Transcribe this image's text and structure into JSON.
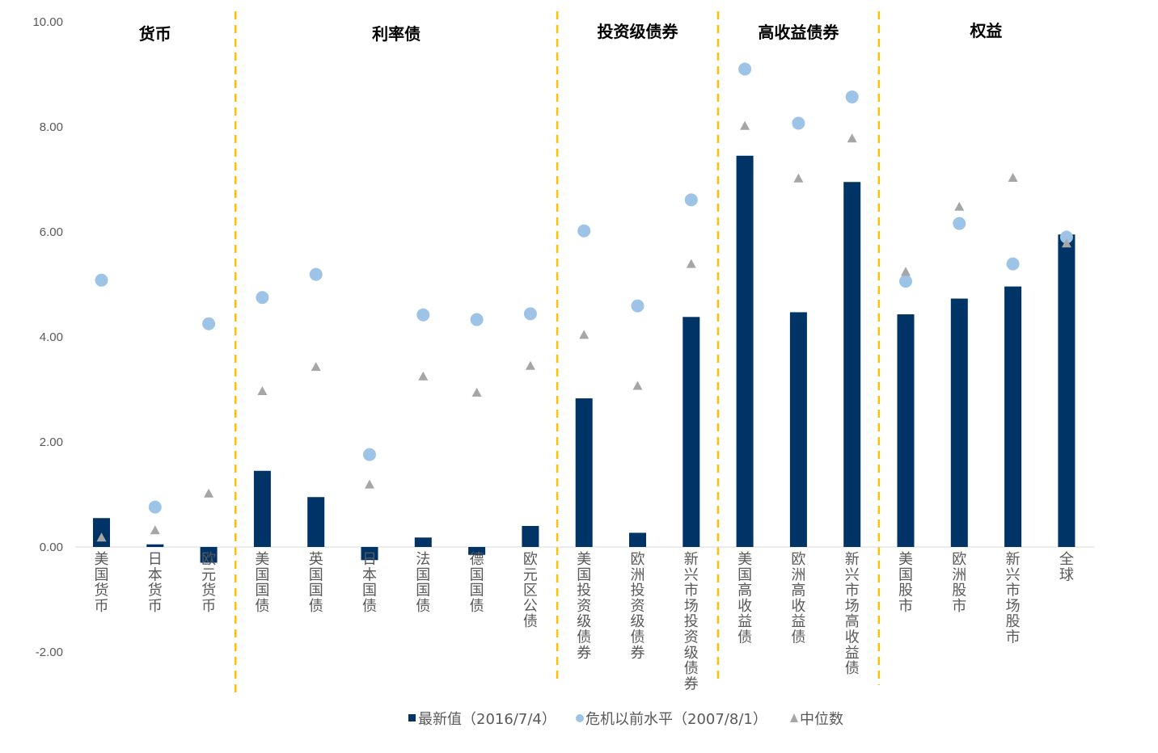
{
  "chart_data": {
    "type": "bar",
    "title": "",
    "xlabel": "",
    "ylabel": "",
    "ylim": [
      -2,
      10
    ],
    "yticks": [
      "-2.00",
      "0.00",
      "2.00",
      "4.00",
      "6.00",
      "8.00",
      "10.00"
    ],
    "grid": false,
    "legend_position": "bottom",
    "categories": [
      "美国货币",
      "日本货币",
      "欧元货币",
      "美国国债",
      "英国国债",
      "日本国债",
      "法国国债",
      "德国国债",
      "欧元区公债",
      "美国投资级债券",
      "欧洲投资级债券",
      "新兴市场投资级债券",
      "美国高收益债",
      "欧洲高收益债",
      "新兴市场高收益债",
      "美国股市",
      "欧洲股市",
      "新兴市场股市",
      "全球"
    ],
    "groups": [
      {
        "label": "货币",
        "start": 0,
        "end": 2
      },
      {
        "label": "利率债",
        "start": 3,
        "end": 8
      },
      {
        "label": "投资级债券",
        "start": 9,
        "end": 11
      },
      {
        "label": "高收益债券",
        "start": 12,
        "end": 14
      },
      {
        "label": "权益",
        "start": 15,
        "end": 18
      }
    ],
    "series": [
      {
        "name": "最新值（2016/7/4）",
        "kind": "bar",
        "color": "#003366",
        "values": [
          0.55,
          0.05,
          -0.3,
          1.45,
          0.95,
          -0.25,
          0.18,
          -0.15,
          0.4,
          2.83,
          0.27,
          4.38,
          7.45,
          4.47,
          6.95,
          4.43,
          4.73,
          4.96,
          5.95
        ]
      },
      {
        "name": "危机以前水平（2007/8/1）",
        "kind": "circle",
        "color": "#9DC3E6",
        "values": [
          5.08,
          0.76,
          4.25,
          4.75,
          5.19,
          1.76,
          4.42,
          4.33,
          4.44,
          6.02,
          4.59,
          6.61,
          9.1,
          8.07,
          8.57,
          5.06,
          6.16,
          5.39,
          5.9
        ]
      },
      {
        "name": "中位数",
        "kind": "triangle",
        "color": "#A6A6A6",
        "values": [
          0.18,
          0.32,
          1.02,
          2.97,
          3.43,
          1.19,
          3.25,
          2.94,
          3.45,
          4.04,
          3.07,
          5.39,
          8.02,
          7.02,
          7.78,
          5.24,
          6.48,
          7.03,
          5.78
        ]
      }
    ]
  }
}
